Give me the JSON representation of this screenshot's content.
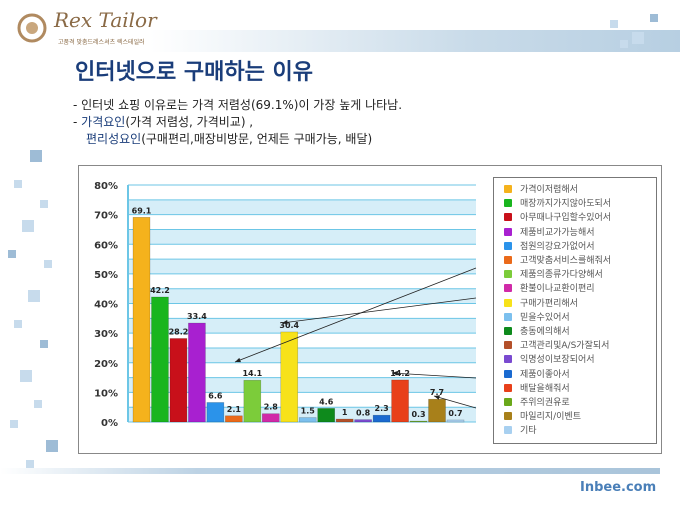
{
  "header": {
    "logo_text": "Rex Tailor",
    "logo_sub": "고품격 맞춤드레스셔츠 렉스테일러",
    "title": "인터넷으로 구매하는 이유"
  },
  "bullets": {
    "b1": "- 인터넷 쇼핑 이유로는 가격 저렴성(69.1%)이 가장 높게 나타남.",
    "b2_dash": "- ",
    "b2_label": "가격요인",
    "b2_rest": "(가격 저렴성, 가격비교) ,",
    "b3_label": "편리성요인",
    "b3_rest": "(구매편리,매장비방문, 언제든 구매가능, 배달)"
  },
  "footer": {
    "site": "Inbee.com"
  },
  "chart_data": {
    "type": "bar",
    "ylim": [
      0,
      80
    ],
    "yticks": [
      "0%",
      "10%",
      "20%",
      "30%",
      "40%",
      "50%",
      "60%",
      "70%",
      "80%"
    ],
    "grid": true,
    "legend_position": "right",
    "categories": [
      "가격이저렴해서",
      "매장까지가지않아도되서",
      "아무때나구입할수있어서",
      "제품비교가가능해서",
      "점원의강요가없어서",
      "고객맞춤서비스를해줘서",
      "제품의종류가다양해서",
      "환불이나교환이편리",
      "구매가편리해서",
      "믿을수있어서",
      "충동에의해서",
      "고객관리및A/S가잘되서",
      "익명성이보장되어서",
      "제품이좋아서",
      "배달을해줘서",
      "주위의권유로",
      "마일리지/이벤트",
      "기타"
    ],
    "values": [
      69.1,
      42.2,
      28.2,
      33.4,
      6.6,
      2.1,
      14.1,
      2.8,
      30.4,
      1.5,
      4.6,
      1,
      0.8,
      2.3,
      14.2,
      0.3,
      7.7,
      0.7
    ],
    "colors": [
      "#f5b21c",
      "#19b51e",
      "#c8101a",
      "#a820d0",
      "#2b93ea",
      "#ea6a1a",
      "#7ccc3a",
      "#d02aa8",
      "#f7e21a",
      "#7cc0ee",
      "#0e8a1c",
      "#b4502a",
      "#7a4ad0",
      "#1a6ad0",
      "#e8401a",
      "#6aa81a",
      "#a8801a",
      "#a8d0f0"
    ]
  }
}
